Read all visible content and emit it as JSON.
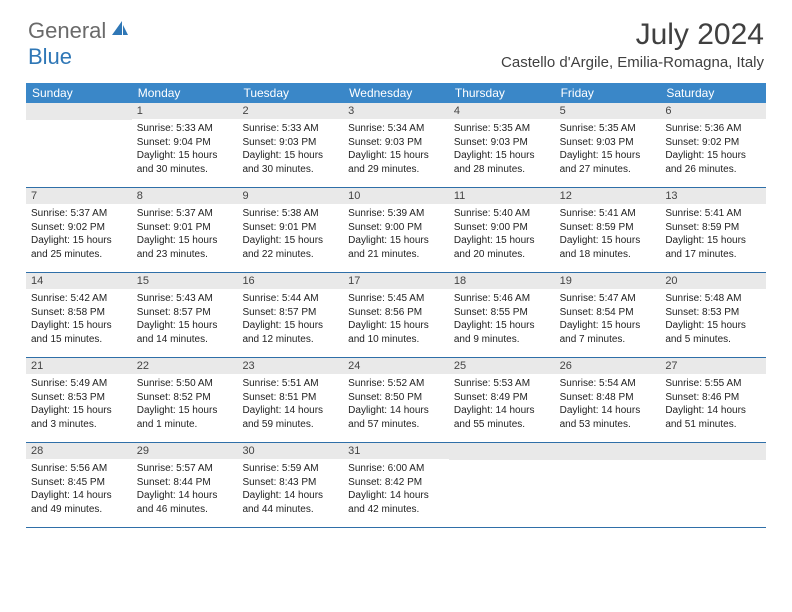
{
  "logo": {
    "general": "General",
    "blue": "Blue"
  },
  "title": "July 2024",
  "location": "Castello d'Argile, Emilia-Romagna, Italy",
  "colors": {
    "header_bg": "#3a87c8",
    "header_text": "#ffffff",
    "daynum_bg": "#e9e9e9",
    "row_border": "#2f6fa8",
    "title_color": "#404040",
    "logo_gray": "#6a6a6a",
    "logo_blue": "#2f77b6"
  },
  "day_headers": [
    "Sunday",
    "Monday",
    "Tuesday",
    "Wednesday",
    "Thursday",
    "Friday",
    "Saturday"
  ],
  "weeks": [
    [
      {
        "n": "",
        "sunrise": "",
        "sunset": "",
        "daylight": ""
      },
      {
        "n": "1",
        "sunrise": "Sunrise: 5:33 AM",
        "sunset": "Sunset: 9:04 PM",
        "daylight": "Daylight: 15 hours and 30 minutes."
      },
      {
        "n": "2",
        "sunrise": "Sunrise: 5:33 AM",
        "sunset": "Sunset: 9:03 PM",
        "daylight": "Daylight: 15 hours and 30 minutes."
      },
      {
        "n": "3",
        "sunrise": "Sunrise: 5:34 AM",
        "sunset": "Sunset: 9:03 PM",
        "daylight": "Daylight: 15 hours and 29 minutes."
      },
      {
        "n": "4",
        "sunrise": "Sunrise: 5:35 AM",
        "sunset": "Sunset: 9:03 PM",
        "daylight": "Daylight: 15 hours and 28 minutes."
      },
      {
        "n": "5",
        "sunrise": "Sunrise: 5:35 AM",
        "sunset": "Sunset: 9:03 PM",
        "daylight": "Daylight: 15 hours and 27 minutes."
      },
      {
        "n": "6",
        "sunrise": "Sunrise: 5:36 AM",
        "sunset": "Sunset: 9:02 PM",
        "daylight": "Daylight: 15 hours and 26 minutes."
      }
    ],
    [
      {
        "n": "7",
        "sunrise": "Sunrise: 5:37 AM",
        "sunset": "Sunset: 9:02 PM",
        "daylight": "Daylight: 15 hours and 25 minutes."
      },
      {
        "n": "8",
        "sunrise": "Sunrise: 5:37 AM",
        "sunset": "Sunset: 9:01 PM",
        "daylight": "Daylight: 15 hours and 23 minutes."
      },
      {
        "n": "9",
        "sunrise": "Sunrise: 5:38 AM",
        "sunset": "Sunset: 9:01 PM",
        "daylight": "Daylight: 15 hours and 22 minutes."
      },
      {
        "n": "10",
        "sunrise": "Sunrise: 5:39 AM",
        "sunset": "Sunset: 9:00 PM",
        "daylight": "Daylight: 15 hours and 21 minutes."
      },
      {
        "n": "11",
        "sunrise": "Sunrise: 5:40 AM",
        "sunset": "Sunset: 9:00 PM",
        "daylight": "Daylight: 15 hours and 20 minutes."
      },
      {
        "n": "12",
        "sunrise": "Sunrise: 5:41 AM",
        "sunset": "Sunset: 8:59 PM",
        "daylight": "Daylight: 15 hours and 18 minutes."
      },
      {
        "n": "13",
        "sunrise": "Sunrise: 5:41 AM",
        "sunset": "Sunset: 8:59 PM",
        "daylight": "Daylight: 15 hours and 17 minutes."
      }
    ],
    [
      {
        "n": "14",
        "sunrise": "Sunrise: 5:42 AM",
        "sunset": "Sunset: 8:58 PM",
        "daylight": "Daylight: 15 hours and 15 minutes."
      },
      {
        "n": "15",
        "sunrise": "Sunrise: 5:43 AM",
        "sunset": "Sunset: 8:57 PM",
        "daylight": "Daylight: 15 hours and 14 minutes."
      },
      {
        "n": "16",
        "sunrise": "Sunrise: 5:44 AM",
        "sunset": "Sunset: 8:57 PM",
        "daylight": "Daylight: 15 hours and 12 minutes."
      },
      {
        "n": "17",
        "sunrise": "Sunrise: 5:45 AM",
        "sunset": "Sunset: 8:56 PM",
        "daylight": "Daylight: 15 hours and 10 minutes."
      },
      {
        "n": "18",
        "sunrise": "Sunrise: 5:46 AM",
        "sunset": "Sunset: 8:55 PM",
        "daylight": "Daylight: 15 hours and 9 minutes."
      },
      {
        "n": "19",
        "sunrise": "Sunrise: 5:47 AM",
        "sunset": "Sunset: 8:54 PM",
        "daylight": "Daylight: 15 hours and 7 minutes."
      },
      {
        "n": "20",
        "sunrise": "Sunrise: 5:48 AM",
        "sunset": "Sunset: 8:53 PM",
        "daylight": "Daylight: 15 hours and 5 minutes."
      }
    ],
    [
      {
        "n": "21",
        "sunrise": "Sunrise: 5:49 AM",
        "sunset": "Sunset: 8:53 PM",
        "daylight": "Daylight: 15 hours and 3 minutes."
      },
      {
        "n": "22",
        "sunrise": "Sunrise: 5:50 AM",
        "sunset": "Sunset: 8:52 PM",
        "daylight": "Daylight: 15 hours and 1 minute."
      },
      {
        "n": "23",
        "sunrise": "Sunrise: 5:51 AM",
        "sunset": "Sunset: 8:51 PM",
        "daylight": "Daylight: 14 hours and 59 minutes."
      },
      {
        "n": "24",
        "sunrise": "Sunrise: 5:52 AM",
        "sunset": "Sunset: 8:50 PM",
        "daylight": "Daylight: 14 hours and 57 minutes."
      },
      {
        "n": "25",
        "sunrise": "Sunrise: 5:53 AM",
        "sunset": "Sunset: 8:49 PM",
        "daylight": "Daylight: 14 hours and 55 minutes."
      },
      {
        "n": "26",
        "sunrise": "Sunrise: 5:54 AM",
        "sunset": "Sunset: 8:48 PM",
        "daylight": "Daylight: 14 hours and 53 minutes."
      },
      {
        "n": "27",
        "sunrise": "Sunrise: 5:55 AM",
        "sunset": "Sunset: 8:46 PM",
        "daylight": "Daylight: 14 hours and 51 minutes."
      }
    ],
    [
      {
        "n": "28",
        "sunrise": "Sunrise: 5:56 AM",
        "sunset": "Sunset: 8:45 PM",
        "daylight": "Daylight: 14 hours and 49 minutes."
      },
      {
        "n": "29",
        "sunrise": "Sunrise: 5:57 AM",
        "sunset": "Sunset: 8:44 PM",
        "daylight": "Daylight: 14 hours and 46 minutes."
      },
      {
        "n": "30",
        "sunrise": "Sunrise: 5:59 AM",
        "sunset": "Sunset: 8:43 PM",
        "daylight": "Daylight: 14 hours and 44 minutes."
      },
      {
        "n": "31",
        "sunrise": "Sunrise: 6:00 AM",
        "sunset": "Sunset: 8:42 PM",
        "daylight": "Daylight: 14 hours and 42 minutes."
      },
      {
        "n": "",
        "sunrise": "",
        "sunset": "",
        "daylight": ""
      },
      {
        "n": "",
        "sunrise": "",
        "sunset": "",
        "daylight": ""
      },
      {
        "n": "",
        "sunrise": "",
        "sunset": "",
        "daylight": ""
      }
    ]
  ]
}
